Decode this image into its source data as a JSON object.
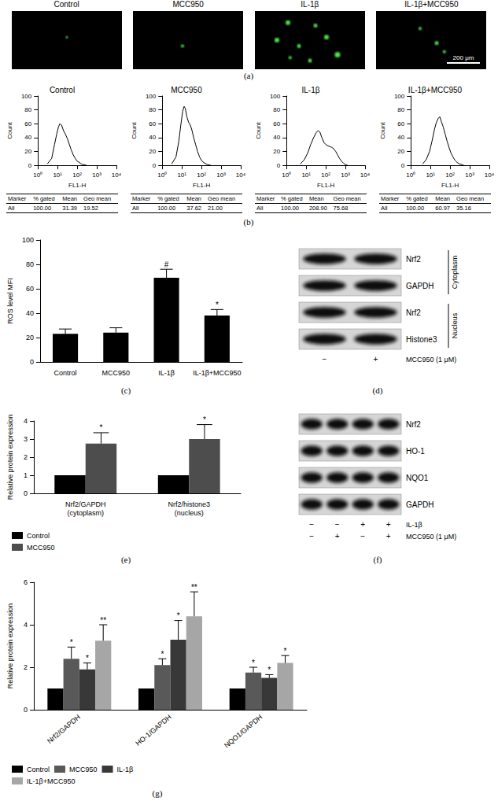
{
  "panel_labels": [
    "(a)",
    "(b)",
    "(c)",
    "(d)",
    "(e)",
    "(f)",
    "(g)"
  ],
  "fluorescence": {
    "titles": [
      "Control",
      "MCC950",
      "IL-1β",
      "IL-1β+MCC950"
    ],
    "scale_bar": "200 μm"
  },
  "flow_tables": [
    {
      "header": [
        "Marker",
        "% gated",
        "Mean",
        "Geo mean"
      ],
      "rows": [
        [
          "All",
          "100.00",
          "31.39",
          "19.52"
        ]
      ]
    },
    {
      "header": [
        "Marker",
        "% gated",
        "Mean",
        "Geo mean"
      ],
      "rows": [
        [
          "All",
          "100.00",
          "37.62",
          "21.00"
        ]
      ]
    },
    {
      "header": [
        "Marker",
        "% gated",
        "Mean",
        "Geo mean"
      ],
      "rows": [
        [
          "All",
          "100.00",
          "208.90",
          "75.68"
        ]
      ]
    },
    {
      "header": [
        "Marker",
        "% gated",
        "Mean",
        "Geo mean"
      ],
      "rows": [
        [
          "All",
          "100.00",
          "60.97",
          "35.16"
        ]
      ]
    }
  ],
  "blots": {
    "d": {
      "fractions": [
        {
          "label": "Cytoplasm",
          "bands": [
            "Nrf2",
            "GAPDH"
          ]
        },
        {
          "label": "Nucleus",
          "bands": [
            "Nrf2",
            "Histone3"
          ]
        }
      ],
      "treatments": [
        {
          "label": "MCC950 (1 μM)",
          "lanes": [
            "−",
            "+"
          ]
        }
      ]
    },
    "f": {
      "bands": [
        "Nrf2",
        "HO-1",
        "NQO1",
        "GAPDH"
      ],
      "treatments": [
        {
          "label": "IL-1β",
          "lanes": [
            "−",
            "−",
            "+",
            "+"
          ]
        },
        {
          "label": "MCC950 (1 μM)",
          "lanes": [
            "−",
            "+",
            "−",
            "+"
          ]
        }
      ]
    }
  },
  "chart_data": [
    {
      "type": "line",
      "title": "Control",
      "x_label": "FL1-H",
      "y_label": "Count",
      "log": "x",
      "grid": false,
      "color": "#000000",
      "xlim": [
        1,
        10000
      ],
      "xticks": [
        {
          "value": 1,
          "label": "10⁰"
        },
        {
          "value": 10,
          "label": "10¹"
        },
        {
          "value": 100,
          "label": "10²"
        },
        {
          "value": 1000,
          "label": "10³"
        },
        {
          "value": 10000,
          "label": "10⁴"
        }
      ],
      "ylim": [
        0,
        100
      ],
      "yticks": [
        0,
        20,
        40,
        60,
        80,
        100
      ],
      "x": [
        3,
        5,
        7,
        9,
        11,
        13,
        16,
        20,
        25,
        32,
        40,
        50,
        63,
        80,
        100,
        130,
        160,
        200,
        300
      ],
      "values": [
        2,
        10,
        30,
        45,
        55,
        60,
        58,
        50,
        45,
        38,
        30,
        22,
        15,
        10,
        6,
        4,
        2,
        1,
        0
      ]
    },
    {
      "type": "line",
      "title": "MCC950",
      "x_label": "FL1-H",
      "y_label": "Count",
      "log": "x",
      "grid": false,
      "color": "#000000",
      "xlim": [
        1,
        10000
      ],
      "xticks": [
        {
          "value": 1,
          "label": "10⁰"
        },
        {
          "value": 10,
          "label": "10¹"
        },
        {
          "value": 100,
          "label": "10²"
        },
        {
          "value": 1000,
          "label": "10³"
        },
        {
          "value": 10000,
          "label": "10⁴"
        }
      ],
      "ylim": [
        0,
        100
      ],
      "yticks": [
        0,
        20,
        40,
        60,
        80,
        100
      ],
      "x": [
        3,
        5,
        7,
        9,
        11,
        13,
        15,
        18,
        22,
        27,
        33,
        40,
        50,
        63,
        80,
        100,
        130,
        200,
        300
      ],
      "values": [
        2,
        12,
        35,
        60,
        78,
        85,
        82,
        70,
        62,
        58,
        50,
        40,
        30,
        20,
        12,
        7,
        4,
        1,
        0
      ]
    },
    {
      "type": "line",
      "title": "IL-1β",
      "x_label": "FL1-H",
      "y_label": "Count",
      "log": "x",
      "grid": false,
      "color": "#000000",
      "xlim": [
        1,
        10000
      ],
      "xticks": [
        {
          "value": 1,
          "label": "10⁰"
        },
        {
          "value": 10,
          "label": "10¹"
        },
        {
          "value": 100,
          "label": "10²"
        },
        {
          "value": 1000,
          "label": "10³"
        },
        {
          "value": 10000,
          "label": "10⁴"
        }
      ],
      "ylim": [
        0,
        100
      ],
      "yticks": [
        0,
        20,
        40,
        60,
        80,
        100
      ],
      "x": [
        5,
        8,
        12,
        17,
        24,
        32,
        40,
        50,
        63,
        80,
        100,
        130,
        160,
        200,
        250,
        320,
        400,
        500,
        630,
        800,
        1000,
        1300
      ],
      "values": [
        2,
        8,
        18,
        30,
        40,
        47,
        50,
        48,
        40,
        33,
        30,
        28,
        27,
        26,
        24,
        20,
        15,
        10,
        6,
        3,
        1,
        0
      ]
    },
    {
      "type": "line",
      "title": "IL-1β+MCC950",
      "x_label": "FL1-H",
      "y_label": "Count",
      "log": "x",
      "grid": false,
      "color": "#000000",
      "xlim": [
        1,
        10000
      ],
      "xticks": [
        {
          "value": 1,
          "label": "10⁰"
        },
        {
          "value": 10,
          "label": "10¹"
        },
        {
          "value": 100,
          "label": "10²"
        },
        {
          "value": 1000,
          "label": "10³"
        },
        {
          "value": 10000,
          "label": "10⁴"
        }
      ],
      "ylim": [
        0,
        100
      ],
      "yticks": [
        0,
        20,
        40,
        60,
        80,
        100
      ],
      "x": [
        4,
        6,
        9,
        12,
        16,
        20,
        25,
        30,
        36,
        45,
        56,
        70,
        90,
        110,
        140,
        180,
        230,
        300,
        400,
        500
      ],
      "values": [
        2,
        8,
        20,
        35,
        52,
        62,
        68,
        70,
        63,
        55,
        45,
        35,
        25,
        18,
        12,
        7,
        4,
        2,
        1,
        0
      ]
    },
    {
      "type": "bar",
      "y_label": "ROS level MFI",
      "grid": false,
      "color": "#000000",
      "categories": [
        "Control",
        "MCC950",
        "IL-1β",
        "IL-1β+MCC950"
      ],
      "values": [
        23,
        24,
        69,
        38
      ],
      "errors": [
        4,
        4,
        7,
        5
      ],
      "annotations": [
        null,
        null,
        "#",
        "*"
      ],
      "ylim": [
        0,
        100
      ],
      "yticks": [
        0,
        20,
        40,
        60,
        80,
        100
      ]
    },
    {
      "type": "bar",
      "y_label": "Relative protein expression",
      "grid": false,
      "legend": "bottom",
      "categories": [
        "Nrf2/GAPDH\n(cytoplasm)",
        "Nrf2/histone3\n(nucleus)"
      ],
      "series": [
        {
          "name": "Control",
          "color": "#000000",
          "values": [
            1,
            1
          ]
        },
        {
          "name": "MCC950",
          "color": "#4d4d4d",
          "values": [
            2.75,
            3.0
          ],
          "errors": [
            0.6,
            0.8
          ],
          "annotations": [
            "*",
            "*"
          ]
        }
      ],
      "ylim": [
        0,
        4
      ],
      "yticks": [
        0,
        1,
        2,
        3,
        4
      ]
    },
    {
      "type": "bar",
      "y_label": "Relative protein expression",
      "grid": false,
      "legend": "bottom",
      "categories": [
        "Nrf2/GAPDH",
        "HO-1/GAPDH",
        "NQO1/GAPDH"
      ],
      "series": [
        {
          "name": "Control",
          "color": "#000000",
          "values": [
            1,
            1,
            1
          ]
        },
        {
          "name": "MCC950",
          "color": "#595959",
          "values": [
            2.4,
            2.1,
            1.75
          ],
          "errors": [
            0.55,
            0.3,
            0.25
          ],
          "annotations": [
            "*",
            "*",
            "*"
          ]
        },
        {
          "name": "IL-1β",
          "color": "#383838",
          "values": [
            1.9,
            3.3,
            1.5
          ],
          "errors": [
            0.3,
            0.9,
            0.15
          ],
          "annotations": [
            "*",
            "*",
            "*"
          ]
        },
        {
          "name": "IL-1β+MCC950",
          "color": "#a6a6a6",
          "values": [
            3.25,
            4.4,
            2.2
          ],
          "errors": [
            0.75,
            1.15,
            0.35
          ],
          "annotations": [
            "**",
            "**",
            "*"
          ]
        }
      ],
      "ylim": [
        0,
        6
      ],
      "yticks": [
        0,
        2,
        4,
        6
      ]
    }
  ]
}
